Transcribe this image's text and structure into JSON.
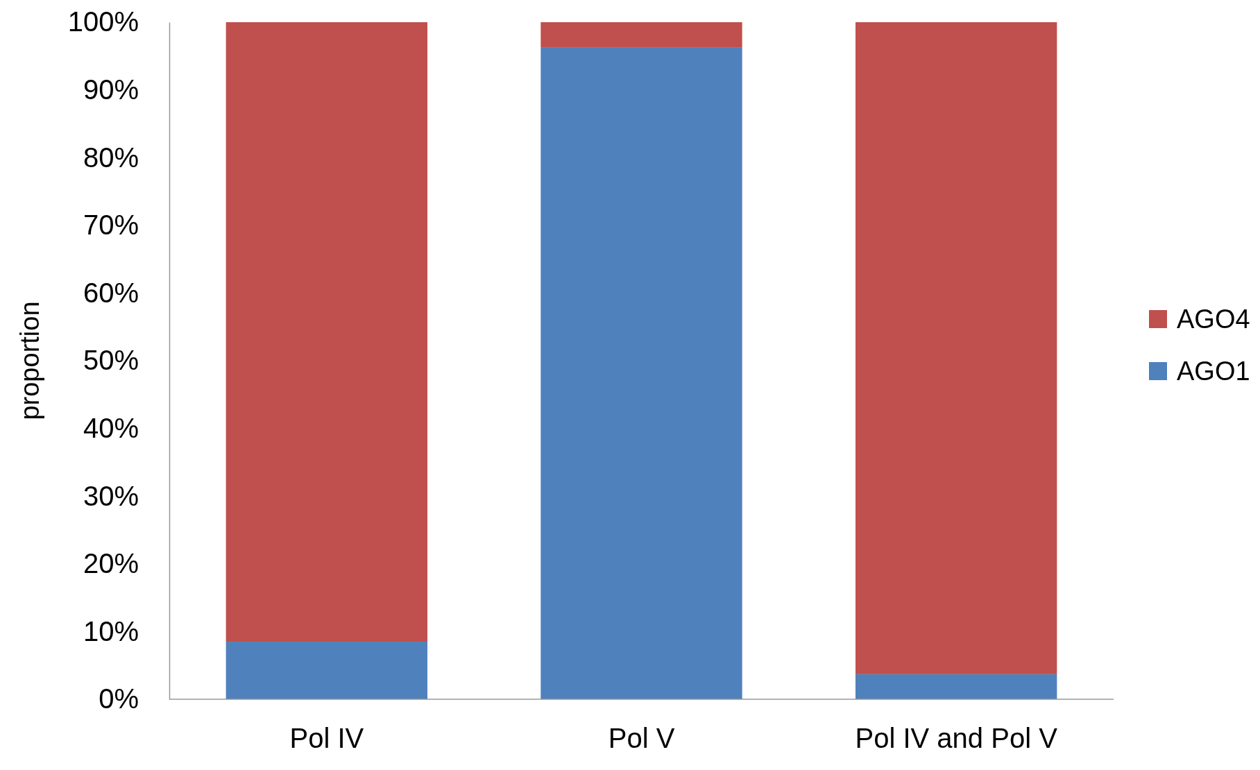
{
  "chart_data": {
    "type": "bar",
    "stacked": true,
    "ylabel": "proportion",
    "categories": [
      "Pol IV",
      "Pol V",
      "Pol IV and Pol V"
    ],
    "series": [
      {
        "name": "AGO1",
        "color": "#4f81bd",
        "values": [
          8.5,
          96.3,
          3.7
        ]
      },
      {
        "name": "AGO4",
        "color": "#c0504d",
        "values": [
          91.5,
          3.7,
          96.3
        ]
      }
    ],
    "ylim": [
      0,
      100
    ],
    "yticks": [
      {
        "value": 0,
        "label": "0%"
      },
      {
        "value": 10,
        "label": "10%"
      },
      {
        "value": 20,
        "label": "20%"
      },
      {
        "value": 30,
        "label": "30%"
      },
      {
        "value": 40,
        "label": "40%"
      },
      {
        "value": 50,
        "label": "50%"
      },
      {
        "value": 60,
        "label": "60%"
      },
      {
        "value": 70,
        "label": "70%"
      },
      {
        "value": 80,
        "label": "80%"
      },
      {
        "value": 90,
        "label": "90%"
      },
      {
        "value": 100,
        "label": "100%"
      }
    ],
    "grid": false,
    "legend": "right"
  }
}
